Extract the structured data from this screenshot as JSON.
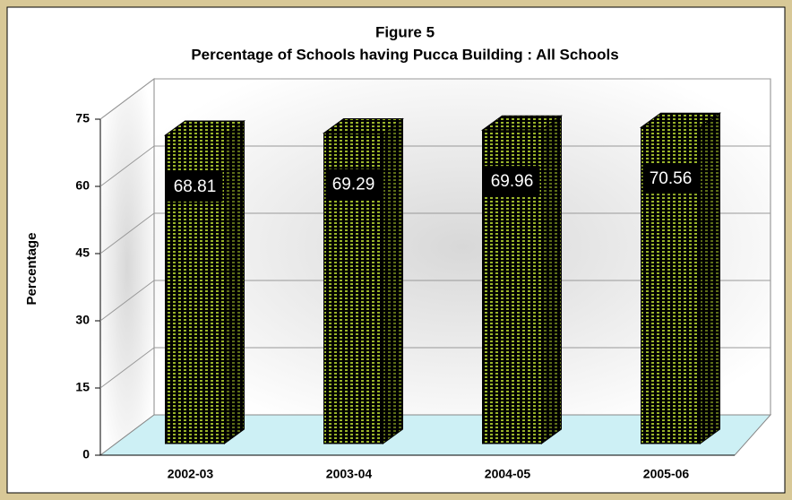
{
  "chart_data": {
    "type": "bar3d",
    "title": "Figure 5",
    "subtitle": "Percentage of Schools having Pucca Building : All Schools",
    "y_label": "Percentage",
    "categories": [
      "2002-03",
      "2003-04",
      "2004-05",
      "2005-06"
    ],
    "values": [
      68.81,
      69.29,
      69.96,
      70.56
    ],
    "color": "#9ab52a",
    "ylim": [
      0,
      75
    ],
    "yticks": [
      0,
      15,
      30,
      45,
      60,
      75
    ],
    "grid": true
  }
}
